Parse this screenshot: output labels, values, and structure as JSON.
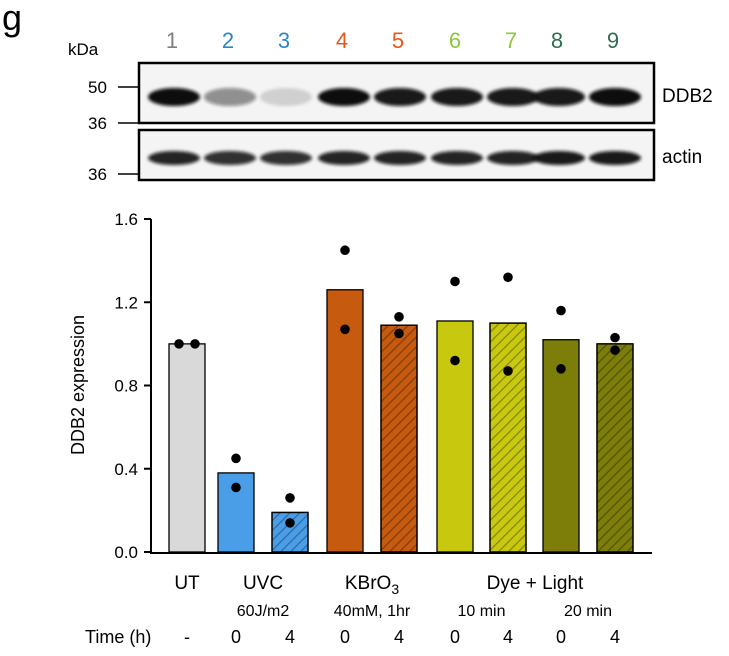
{
  "figure": {
    "panel_letter": "g",
    "kda_label": "kDa"
  },
  "blot": {
    "lane_numbers": [
      "1",
      "2",
      "3",
      "4",
      "5",
      "6",
      "7",
      "8",
      "9"
    ],
    "lane_colors": [
      "#7f7f7f",
      "#2e86c1",
      "#2e86c1",
      "#e2591a",
      "#e2591a",
      "#8dc63f",
      "#8dc63f",
      "#2f6f4f",
      "#2f6f4f"
    ],
    "ddb2": {
      "label": "DDB2",
      "markers": [
        "50",
        "36"
      ],
      "band_intensity": [
        1.0,
        0.45,
        0.15,
        1.0,
        0.95,
        0.95,
        0.95,
        0.95,
        1.0
      ]
    },
    "actin": {
      "label": "actin",
      "markers": [
        "36"
      ],
      "band_intensity": [
        0.9,
        0.85,
        0.85,
        0.9,
        0.9,
        0.9,
        0.9,
        0.95,
        0.95
      ]
    }
  },
  "chart_data": {
    "type": "bar",
    "ylabel": "DDB2 expression",
    "ylim": [
      0,
      1.6
    ],
    "yticks": [
      "0.0",
      "0.4",
      "0.8",
      "1.2",
      "1.6"
    ],
    "bars": [
      {
        "value": 1.0,
        "points": [
          1.0,
          1.0
        ],
        "color": "#d9d9d9",
        "hatched": false
      },
      {
        "value": 0.38,
        "points": [
          0.45,
          0.31
        ],
        "color": "#4a9ee8",
        "hatched": false
      },
      {
        "value": 0.19,
        "points": [
          0.26,
          0.14
        ],
        "color": "#4a9ee8",
        "hatched": true
      },
      {
        "value": 1.26,
        "points": [
          1.45,
          1.07
        ],
        "color": "#c65a0e",
        "hatched": false
      },
      {
        "value": 1.09,
        "points": [
          1.13,
          1.05
        ],
        "color": "#c65a0e",
        "hatched": true
      },
      {
        "value": 1.11,
        "points": [
          1.3,
          0.92
        ],
        "color": "#c8c80e",
        "hatched": false
      },
      {
        "value": 1.1,
        "points": [
          1.32,
          0.87
        ],
        "color": "#c8c80e",
        "hatched": true
      },
      {
        "value": 1.02,
        "points": [
          1.16,
          0.88
        ],
        "color": "#7d7d0a",
        "hatched": false
      },
      {
        "value": 1.0,
        "points": [
          1.03,
          0.97
        ],
        "color": "#7d7d0a",
        "hatched": true
      }
    ],
    "group_labels": [
      {
        "label": "UT",
        "lanes": [
          0,
          0
        ]
      },
      {
        "label": "UVC",
        "lanes": [
          1,
          2
        ]
      },
      {
        "label": "KBrO",
        "sub": "3",
        "lanes": [
          3,
          4
        ]
      },
      {
        "label": "Dye + Light",
        "lanes": [
          5,
          8
        ]
      }
    ],
    "conditions": [
      {
        "label": "60J/m2",
        "lanes": [
          1,
          2
        ]
      },
      {
        "label": "40mM, 1hr",
        "lanes": [
          3,
          4
        ]
      },
      {
        "label": "10 min",
        "lanes": [
          5,
          6
        ]
      },
      {
        "label": "20 min",
        "lanes": [
          7,
          8
        ]
      }
    ],
    "time_label": "Time (h)",
    "time_values": [
      "-",
      "0",
      "4",
      "0",
      "4",
      "0",
      "4",
      "0",
      "4"
    ]
  }
}
